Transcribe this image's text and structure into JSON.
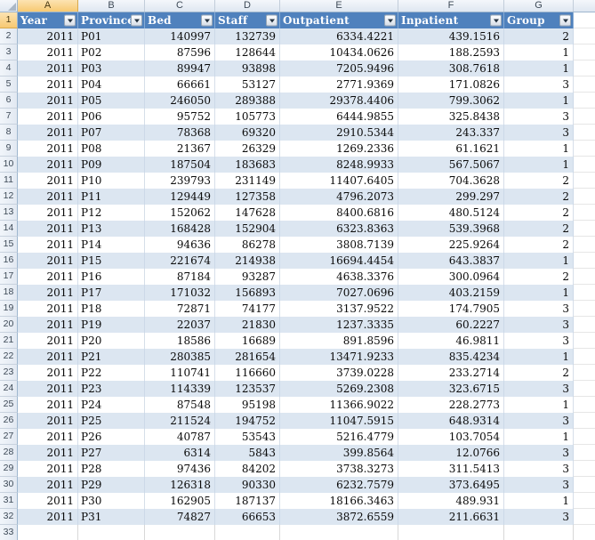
{
  "sheet": {
    "active_column": "A",
    "active_row": 1,
    "row_count": 33,
    "icons": {
      "filter_dropdown": "down-arrow",
      "select_all": "corner-triangle"
    },
    "columns": [
      {
        "letter": "A",
        "label": "Year"
      },
      {
        "letter": "B",
        "label": "Province"
      },
      {
        "letter": "C",
        "label": "Bed"
      },
      {
        "letter": "D",
        "label": "Staff"
      },
      {
        "letter": "E",
        "label": "Outpatient"
      },
      {
        "letter": "F",
        "label": "Inpatient"
      },
      {
        "letter": "G",
        "label": "Group"
      }
    ],
    "rows": [
      [
        "2011",
        "P01",
        "140997",
        "132739",
        "6334.4221",
        "439.1516",
        "2"
      ],
      [
        "2011",
        "P02",
        "87596",
        "128644",
        "10434.0626",
        "188.2593",
        "1"
      ],
      [
        "2011",
        "P03",
        "89947",
        "93898",
        "7205.9496",
        "308.7618",
        "1"
      ],
      [
        "2011",
        "P04",
        "66661",
        "53127",
        "2771.9369",
        "171.0826",
        "3"
      ],
      [
        "2011",
        "P05",
        "246050",
        "289388",
        "29378.4406",
        "799.3062",
        "1"
      ],
      [
        "2011",
        "P06",
        "95752",
        "105773",
        "6444.9855",
        "325.8438",
        "3"
      ],
      [
        "2011",
        "P07",
        "78368",
        "69320",
        "2910.5344",
        "243.337",
        "3"
      ],
      [
        "2011",
        "P08",
        "21367",
        "26329",
        "1269.2336",
        "61.1621",
        "1"
      ],
      [
        "2011",
        "P09",
        "187504",
        "183683",
        "8248.9933",
        "567.5067",
        "1"
      ],
      [
        "2011",
        "P10",
        "239793",
        "231149",
        "11407.6405",
        "704.3628",
        "2"
      ],
      [
        "2011",
        "P11",
        "129449",
        "127358",
        "4796.2073",
        "299.297",
        "2"
      ],
      [
        "2011",
        "P12",
        "152062",
        "147628",
        "8400.6816",
        "480.5124",
        "2"
      ],
      [
        "2011",
        "P13",
        "168428",
        "152904",
        "6323.8363",
        "539.3968",
        "2"
      ],
      [
        "2011",
        "P14",
        "94636",
        "86278",
        "3808.7139",
        "225.9264",
        "2"
      ],
      [
        "2011",
        "P15",
        "221674",
        "214938",
        "16694.4454",
        "643.3837",
        "1"
      ],
      [
        "2011",
        "P16",
        "87184",
        "93287",
        "4638.3376",
        "300.0964",
        "2"
      ],
      [
        "2011",
        "P17",
        "171032",
        "156893",
        "7027.0696",
        "403.2159",
        "1"
      ],
      [
        "2011",
        "P18",
        "72871",
        "74177",
        "3137.9522",
        "174.7905",
        "3"
      ],
      [
        "2011",
        "P19",
        "22037",
        "21830",
        "1237.3335",
        "60.2227",
        "3"
      ],
      [
        "2011",
        "P20",
        "18586",
        "16689",
        "891.8596",
        "46.9811",
        "3"
      ],
      [
        "2011",
        "P21",
        "280385",
        "281654",
        "13471.9233",
        "835.4234",
        "1"
      ],
      [
        "2011",
        "P22",
        "110741",
        "116660",
        "3739.0228",
        "233.2714",
        "2"
      ],
      [
        "2011",
        "P23",
        "114339",
        "123537",
        "5269.2308",
        "323.6715",
        "3"
      ],
      [
        "2011",
        "P24",
        "87548",
        "95198",
        "11366.9022",
        "228.2773",
        "1"
      ],
      [
        "2011",
        "P25",
        "211524",
        "194752",
        "11047.5915",
        "648.9314",
        "3"
      ],
      [
        "2011",
        "P26",
        "40787",
        "53543",
        "5216.4779",
        "103.7054",
        "1"
      ],
      [
        "2011",
        "P27",
        "6314",
        "5843",
        "399.8564",
        "12.0766",
        "3"
      ],
      [
        "2011",
        "P28",
        "97436",
        "84202",
        "3738.3273",
        "311.5413",
        "3"
      ],
      [
        "2011",
        "P29",
        "126318",
        "90330",
        "6232.7579",
        "373.6495",
        "3"
      ],
      [
        "2011",
        "P30",
        "162905",
        "187137",
        "18166.3463",
        "489.931",
        "1"
      ],
      [
        "2011",
        "P31",
        "74827",
        "66653",
        "3872.6559",
        "211.6631",
        "3"
      ]
    ]
  }
}
